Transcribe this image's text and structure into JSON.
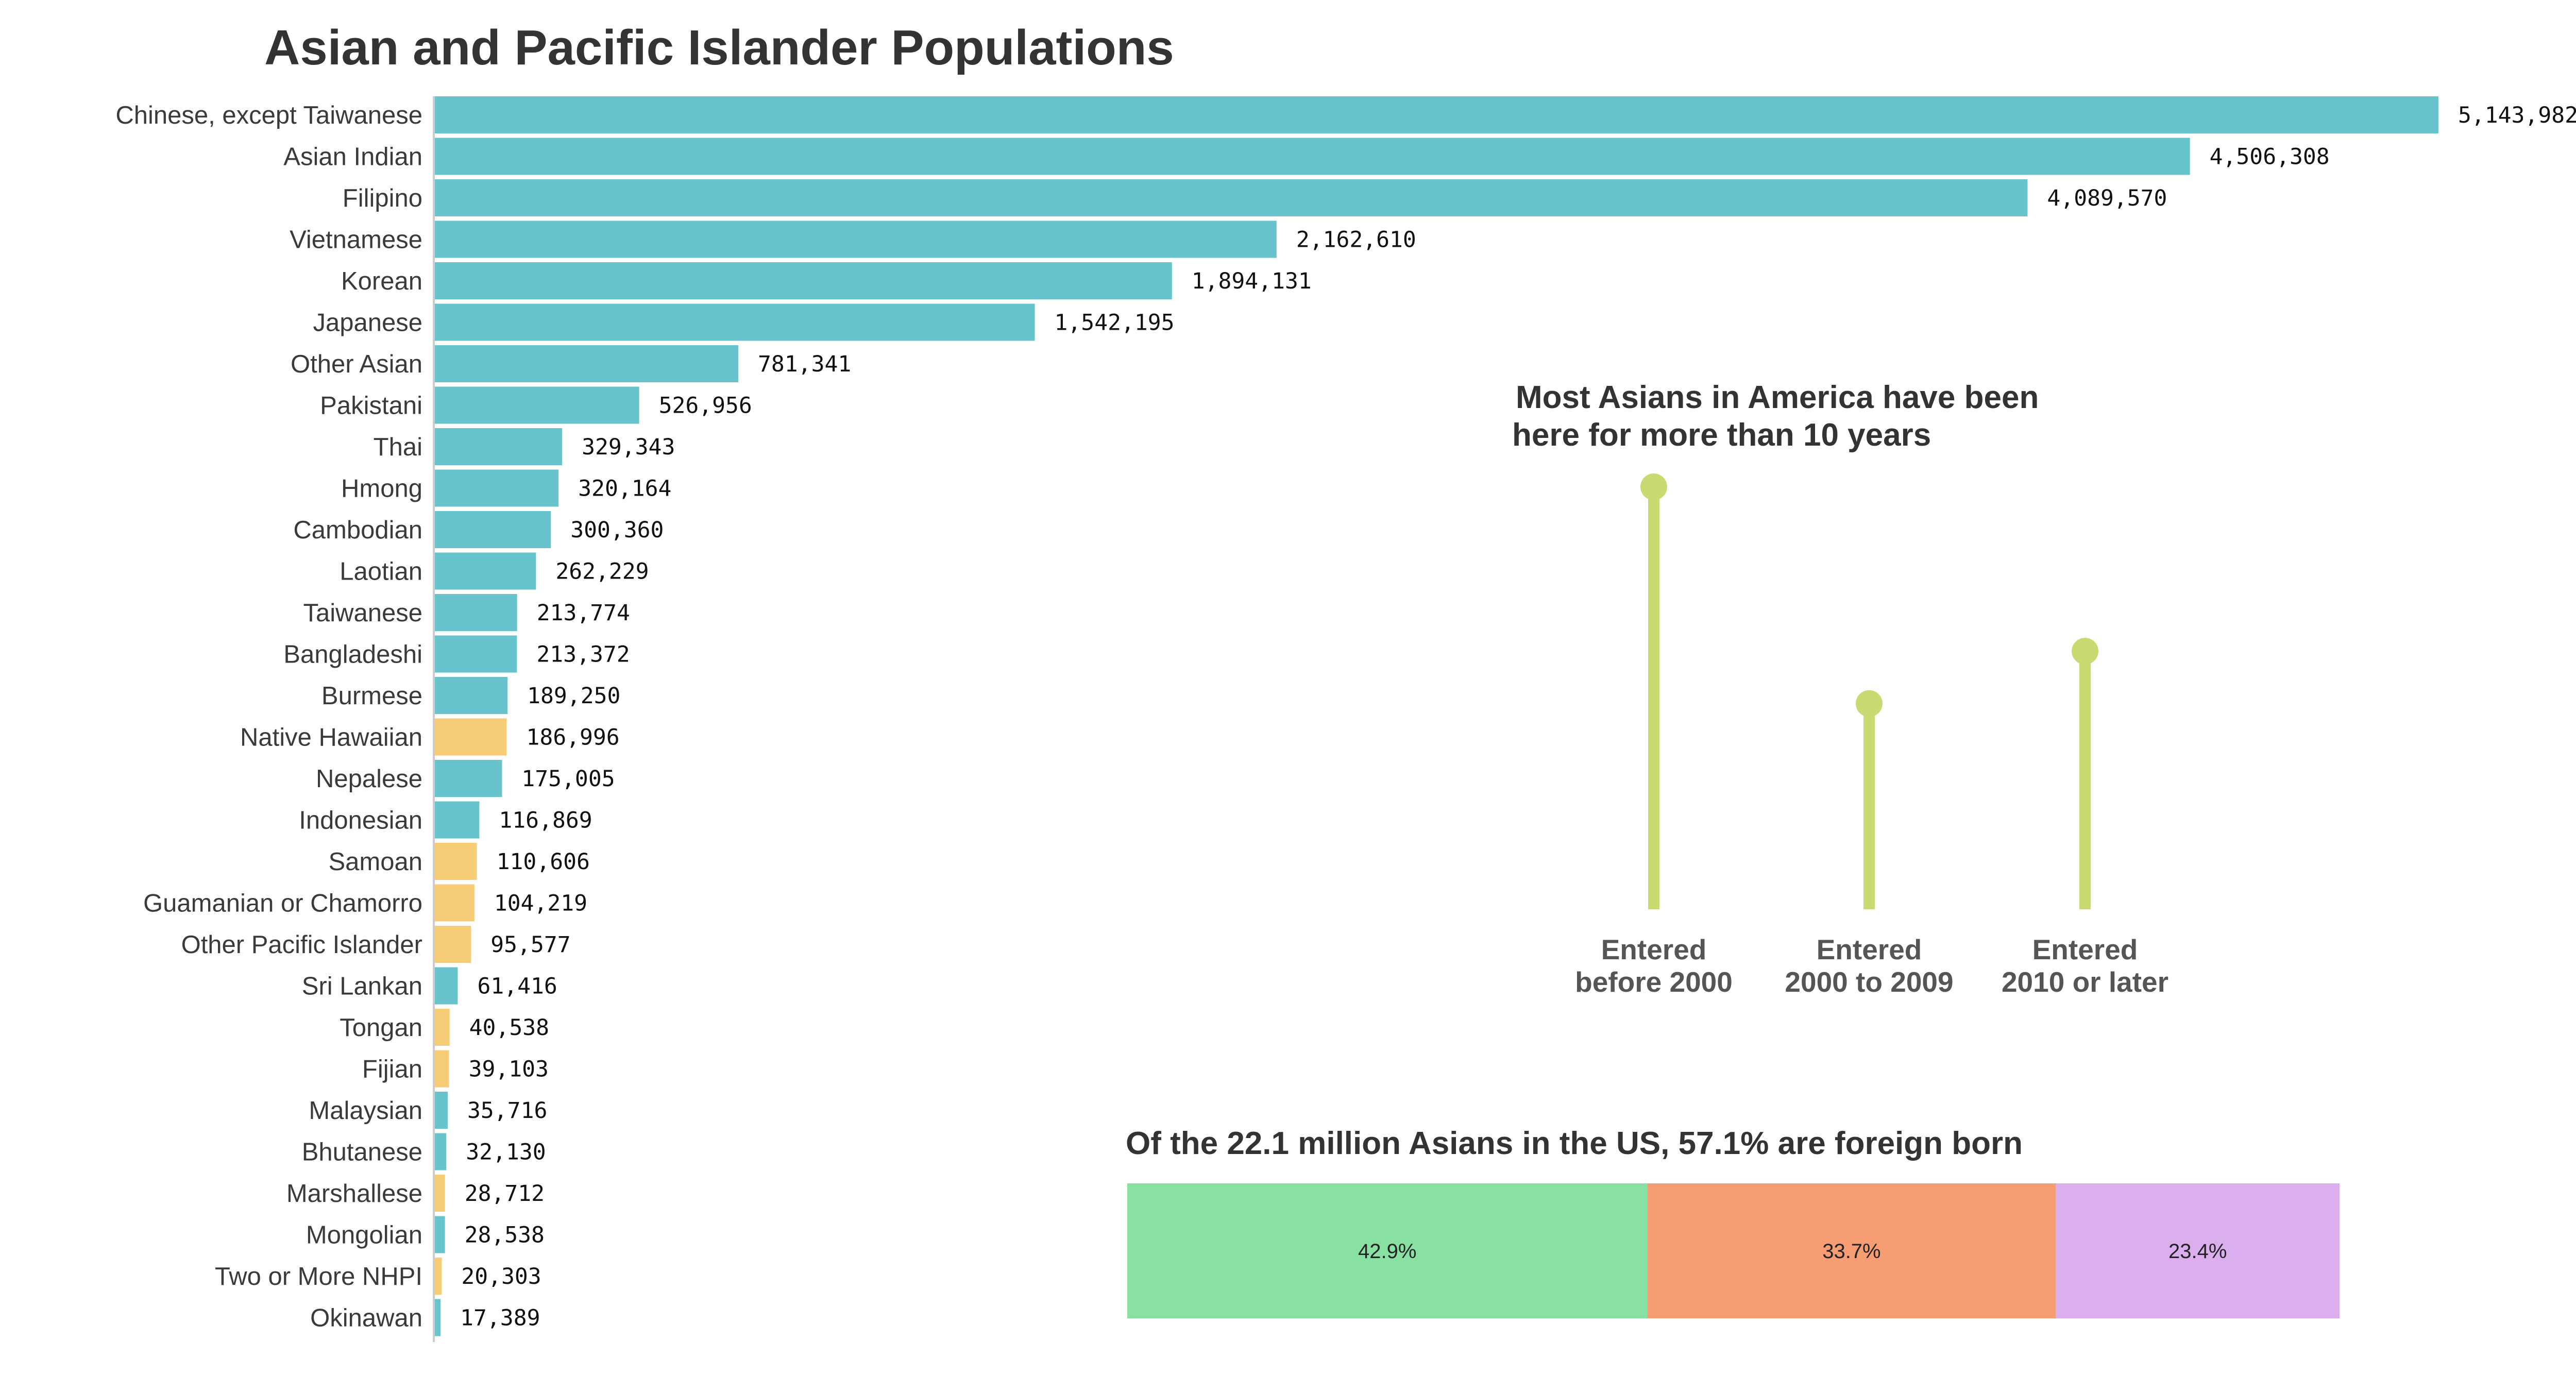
{
  "chart_data": [
    {
      "type": "bar",
      "orientation": "horizontal",
      "title": "Asian and Pacific Islander Populations",
      "categories": [
        "Chinese, except Taiwanese",
        "Asian Indian",
        "Filipino",
        "Vietnamese",
        "Korean",
        "Japanese",
        "Other Asian",
        "Pakistani",
        "Thai",
        "Hmong",
        "Cambodian",
        "Laotian",
        "Taiwanese",
        "Bangladeshi",
        "Burmese",
        "Native Hawaiian",
        "Nepalese",
        "Indonesian",
        "Samoan",
        "Guamanian or Chamorro",
        "Other Pacific Islander",
        "Sri Lankan",
        "Tongan",
        "Fijian",
        "Malaysian",
        "Bhutanese",
        "Marshallese",
        "Mongolian",
        "Two or More NHPI",
        "Okinawan"
      ],
      "values": [
        5143982,
        4506308,
        4089570,
        2162610,
        1894131,
        1542195,
        781341,
        526956,
        329343,
        320164,
        300360,
        262229,
        213774,
        213372,
        189250,
        186996,
        175005,
        116869,
        110606,
        104219,
        95577,
        61416,
        40538,
        39103,
        35716,
        32130,
        28712,
        28538,
        20303,
        17389
      ],
      "value_labels": [
        "5,143,982",
        "4,506,308",
        "4,089,570",
        "2,162,610",
        "1,894,131",
        "1,542,195",
        "781,341",
        "526,956",
        "329,343",
        "320,164",
        "300,360",
        "262,229",
        "213,774",
        "213,372",
        "189,250",
        "186,996",
        "175,005",
        "116,869",
        "110,606",
        "104,219",
        "95,577",
        "61,416",
        "40,538",
        "39,103",
        "35,716",
        "32,130",
        "28,712",
        "28,538",
        "20,303",
        "17,389"
      ],
      "groups": [
        "asian",
        "asian",
        "asian",
        "asian",
        "asian",
        "asian",
        "asian",
        "asian",
        "asian",
        "asian",
        "asian",
        "asian",
        "asian",
        "asian",
        "asian",
        "pacific",
        "asian",
        "asian",
        "pacific",
        "pacific",
        "pacific",
        "asian",
        "pacific",
        "pacific",
        "asian",
        "asian",
        "pacific",
        "asian",
        "pacific",
        "asian"
      ],
      "colors": {
        "asian": "#67c4cc",
        "pacific": "#f6cd76"
      },
      "xlim": [
        0,
        5143982
      ],
      "grid": false,
      "legend": "none"
    },
    {
      "type": "lollipop",
      "title": "Most Asians in America have been here for more than 10 years",
      "title_lines": [
        "Most Asians in America have been",
        "here for more than 10 years"
      ],
      "categories": [
        [
          "Entered",
          "before 2000"
        ],
        [
          "Entered",
          "2000 to 2009"
        ],
        [
          "Entered",
          "2010 or later"
        ]
      ],
      "values": [
        100,
        48.7,
        61.1
      ],
      "value_note": "relative stem heights, no axis shown",
      "color": "#c9da72"
    },
    {
      "type": "stacked_bar",
      "title": "Of the 22.1 million Asians in the US, 57.1% are foreign born",
      "values": [
        42.9,
        33.7,
        23.4
      ],
      "labels": [
        "42.9%",
        "33.7%",
        "23.4%"
      ],
      "colors": [
        "#89e0a3",
        "#f69d73",
        "#dbaeee"
      ]
    }
  ]
}
